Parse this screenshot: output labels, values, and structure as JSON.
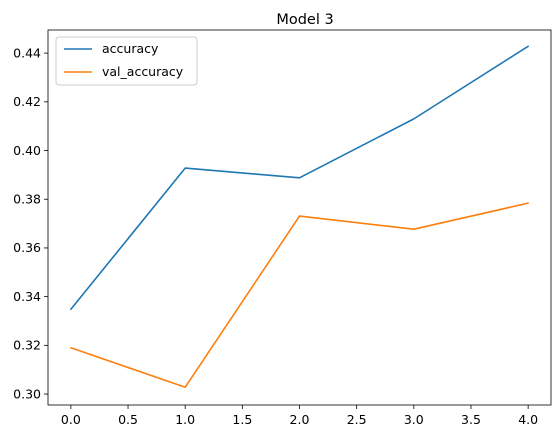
{
  "chart_data": {
    "type": "line",
    "title": "Model 3",
    "xlabel": "",
    "ylabel": "",
    "xlim": [
      -0.2,
      4.2
    ],
    "ylim": [
      0.2955,
      0.4495
    ],
    "xticks": [
      "0.0",
      "0.5",
      "1.0",
      "1.5",
      "2.0",
      "2.5",
      "3.0",
      "3.5",
      "4.0"
    ],
    "yticks": [
      "0.30",
      "0.32",
      "0.34",
      "0.36",
      "0.38",
      "0.40",
      "0.42",
      "0.44"
    ],
    "grid": false,
    "legend_position": "top-left",
    "x": [
      0,
      1,
      2,
      3,
      4
    ],
    "series": [
      {
        "name": "accuracy",
        "color": "#1f77b4",
        "values": [
          0.3348,
          0.3928,
          0.3888,
          0.413,
          0.4428
        ]
      },
      {
        "name": "val_accuracy",
        "color": "#ff7f0e",
        "values": [
          0.319,
          0.3028,
          0.3731,
          0.3677,
          0.3784
        ]
      }
    ]
  }
}
